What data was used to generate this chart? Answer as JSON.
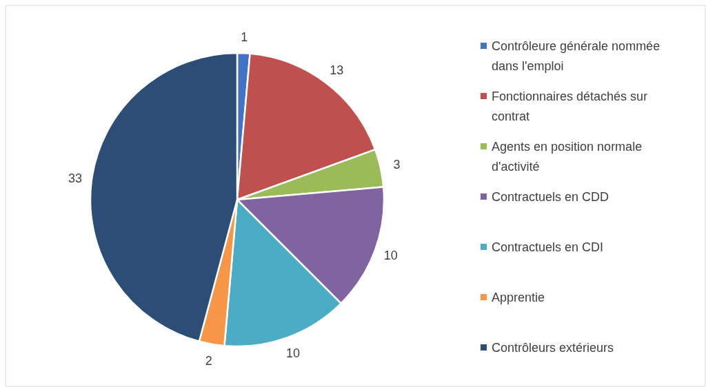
{
  "chart_data": {
    "type": "pie",
    "categories": [
      "Contrôleure générale nommée dans l'emploi",
      "Fonctionnaires détachés sur contrat",
      "Agents en position normale d'activité",
      "Contractuels en CDD",
      "Contractuels en CDI",
      "Apprentie",
      "Contrôleurs extérieurs"
    ],
    "values": [
      1,
      13,
      3,
      10,
      10,
      2,
      33
    ],
    "colors": [
      "#4472c4",
      "#c0504d",
      "#9bbb59",
      "#8064a2",
      "#4bacc6",
      "#f79646",
      "#2c4d75"
    ],
    "data_labels": true,
    "legend": "right"
  }
}
